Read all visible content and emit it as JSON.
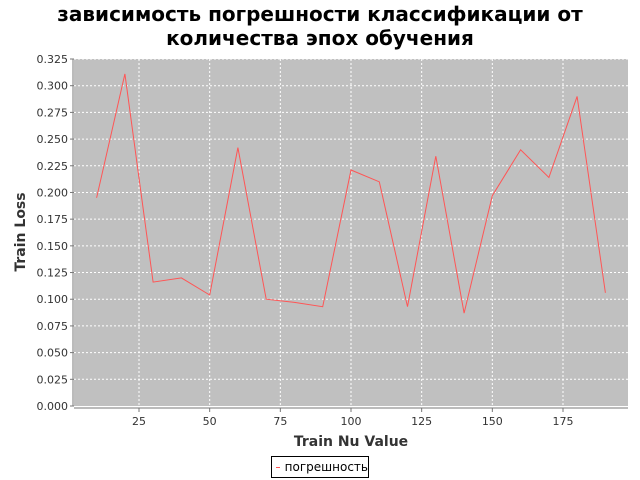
{
  "chart_data": {
    "type": "line",
    "title": "зависимость погрешности классификации от количества эпох обучения",
    "xlabel": "Train Nu Value",
    "ylabel": "Train Loss",
    "xlim": [
      2,
      198
    ],
    "ylim": [
      0,
      0.325
    ],
    "x_ticks": [
      "25",
      "50",
      "75",
      "100",
      "125",
      "150",
      "175"
    ],
    "y_ticks": [
      "0.000",
      "0.025",
      "0.050",
      "0.075",
      "0.100",
      "0.125",
      "0.150",
      "0.175",
      "0.200",
      "0.225",
      "0.250",
      "0.275",
      "0.300",
      "0.325"
    ],
    "grid": true,
    "legend_position": "bottom",
    "series": [
      {
        "name": "погрешность",
        "color": "#ff5555",
        "x": [
          10,
          20,
          30,
          40,
          50,
          60,
          70,
          80,
          90,
          100,
          110,
          120,
          130,
          140,
          150,
          160,
          170,
          180,
          190
        ],
        "y": [
          0.195,
          0.311,
          0.116,
          0.12,
          0.104,
          0.242,
          0.1,
          0.097,
          0.093,
          0.221,
          0.21,
          0.093,
          0.234,
          0.087,
          0.197,
          0.24,
          0.214,
          0.29,
          0.106
        ]
      }
    ]
  }
}
